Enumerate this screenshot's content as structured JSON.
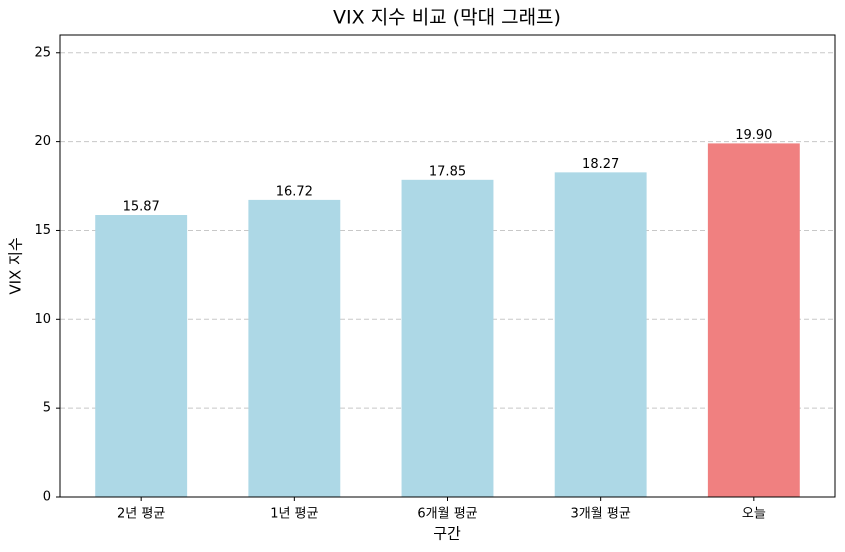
{
  "chart_data": {
    "type": "bar",
    "title": "VIX 지수 비교 (막대 그래프)",
    "x_label": "구간",
    "y_label": "VIX 지수",
    "categories": [
      "2년 평균",
      "1년 평균",
      "6개월 평균",
      "3개월 평균",
      "오늘"
    ],
    "values": [
      15.87,
      16.72,
      17.85,
      18.27,
      19.9
    ],
    "value_labels": [
      "15.87",
      "16.72",
      "17.85",
      "18.27",
      "19.90"
    ],
    "colors": [
      "#add8e6",
      "#add8e6",
      "#add8e6",
      "#add8e6",
      "#f08080"
    ],
    "ylim": [
      0,
      26
    ],
    "yticks": [
      0,
      5,
      10,
      15,
      20,
      25
    ],
    "grid": true
  }
}
